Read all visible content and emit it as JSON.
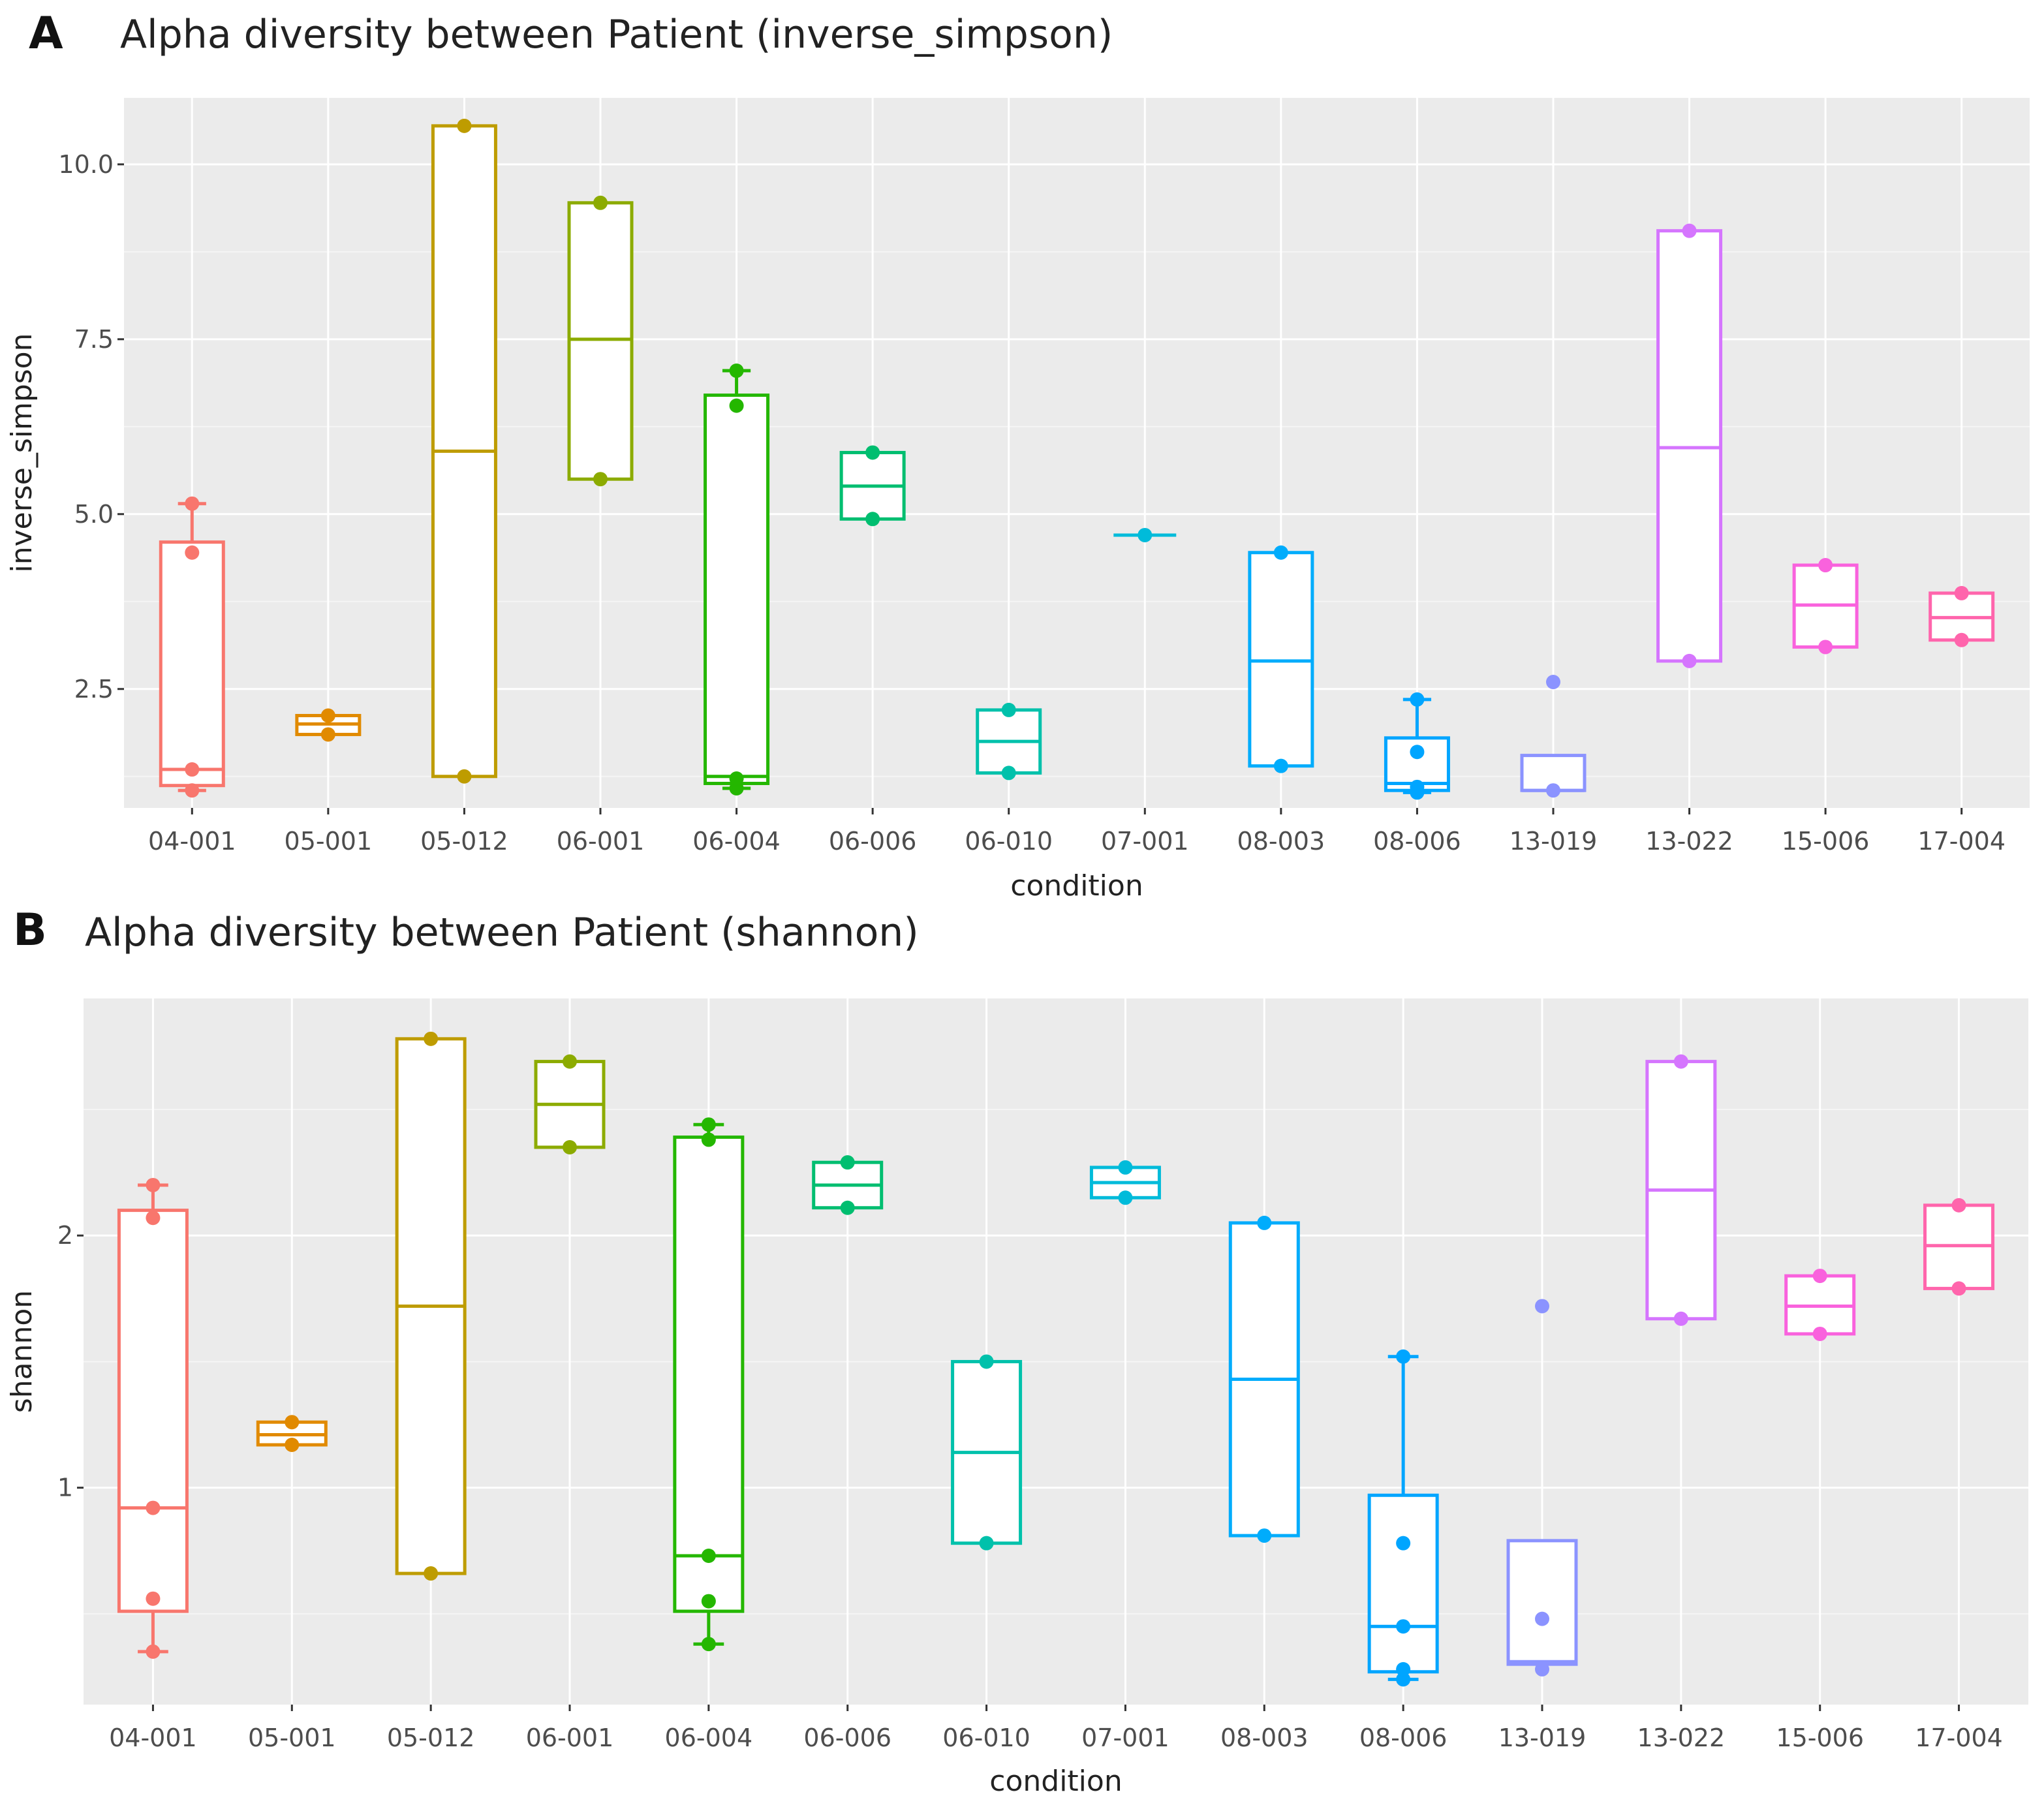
{
  "figure": {
    "panels": [
      {
        "letter": "A",
        "title": "Alpha diversity between Patient (inverse_simpson)"
      },
      {
        "letter": "B",
        "title": "Alpha diversity between Patient (shannon)"
      }
    ]
  },
  "chart_data": [
    {
      "type": "box",
      "title": "Alpha diversity between Patient (inverse_simpson)",
      "xlabel": "condition",
      "ylabel": "inverse_simpson",
      "ylim": [
        0.8,
        10.95
      ],
      "yticks": [
        2.5,
        5.0,
        7.5,
        10.0
      ],
      "ytick_labels": [
        "2.5",
        "5.0",
        "7.5",
        "10.0"
      ],
      "categories": [
        "04-001",
        "05-001",
        "05-012",
        "06-001",
        "06-004",
        "06-006",
        "06-010",
        "07-001",
        "08-003",
        "08-006",
        "13-019",
        "13-022",
        "15-006",
        "17-004"
      ],
      "colors": [
        "#F8766D",
        "#E18A00",
        "#BE9C00",
        "#8CAB00",
        "#24B700",
        "#00BE70",
        "#00C1AB",
        "#00BBDA",
        "#00ACFC",
        "#00A5FF",
        "#8B93FF",
        "#D575FE",
        "#F962DD",
        "#FF65AC"
      ],
      "boxes": [
        {
          "min": 1.05,
          "q1": 1.12,
          "median": 1.35,
          "q3": 4.6,
          "max": 5.15,
          "points": [
            1.05,
            1.35,
            4.45,
            5.15
          ]
        },
        {
          "min": 1.85,
          "q1": 1.85,
          "median": 2.0,
          "q3": 2.12,
          "max": 2.12,
          "points": [
            1.85,
            2.12
          ]
        },
        {
          "min": 1.25,
          "q1": 1.25,
          "median": 5.9,
          "q3": 10.55,
          "max": 10.55,
          "points": [
            1.25,
            10.55
          ]
        },
        {
          "min": 5.5,
          "q1": 5.5,
          "median": 7.5,
          "q3": 9.45,
          "max": 9.45,
          "points": [
            5.5,
            9.45
          ]
        },
        {
          "min": 1.08,
          "q1": 1.15,
          "median": 1.25,
          "q3": 6.7,
          "max": 7.05,
          "points": [
            1.08,
            1.22,
            6.55,
            7.05
          ]
        },
        {
          "min": 4.93,
          "q1": 4.93,
          "median": 5.4,
          "q3": 5.88,
          "max": 5.88,
          "points": [
            4.93,
            5.88
          ]
        },
        {
          "min": 1.3,
          "q1": 1.3,
          "median": 1.75,
          "q3": 2.2,
          "max": 2.2,
          "points": [
            1.3,
            2.2
          ]
        },
        {
          "min": 4.7,
          "q1": 4.7,
          "median": 4.7,
          "q3": 4.7,
          "max": 4.7,
          "points": [
            4.7
          ]
        },
        {
          "min": 1.4,
          "q1": 1.4,
          "median": 2.9,
          "q3": 4.45,
          "max": 4.45,
          "points": [
            1.4,
            4.45
          ]
        },
        {
          "min": 1.02,
          "q1": 1.05,
          "median": 1.15,
          "q3": 1.8,
          "max": 2.35,
          "points": [
            1.02,
            1.1,
            1.6,
            2.35
          ]
        },
        {
          "min": 1.05,
          "q1": 1.05,
          "median": 1.05,
          "q3": 1.55,
          "max": 1.55,
          "points": [
            1.05,
            2.6
          ]
        },
        {
          "min": 2.9,
          "q1": 2.9,
          "median": 5.95,
          "q3": 9.05,
          "max": 9.05,
          "points": [
            2.9,
            9.05
          ]
        },
        {
          "min": 3.1,
          "q1": 3.1,
          "median": 3.7,
          "q3": 4.27,
          "max": 4.27,
          "points": [
            3.1,
            4.27
          ]
        },
        {
          "min": 3.2,
          "q1": 3.2,
          "median": 3.52,
          "q3": 3.87,
          "max": 3.87,
          "points": [
            3.2,
            3.87
          ]
        }
      ]
    },
    {
      "type": "box",
      "title": "Alpha diversity between Patient (shannon)",
      "xlabel": "condition",
      "ylabel": "shannon",
      "ylim": [
        0.14,
        2.94
      ],
      "yticks": [
        1,
        2
      ],
      "ytick_labels": [
        "1",
        "2"
      ],
      "categories": [
        "04-001",
        "05-001",
        "05-012",
        "06-001",
        "06-004",
        "06-006",
        "06-010",
        "07-001",
        "08-003",
        "08-006",
        "13-019",
        "13-022",
        "15-006",
        "17-004"
      ],
      "colors": [
        "#F8766D",
        "#E18A00",
        "#BE9C00",
        "#8CAB00",
        "#24B700",
        "#00BE70",
        "#00C1AB",
        "#00BBDA",
        "#00ACFC",
        "#00A5FF",
        "#8B93FF",
        "#D575FE",
        "#F962DD",
        "#FF65AC"
      ],
      "boxes": [
        {
          "min": 0.35,
          "q1": 0.51,
          "median": 0.92,
          "q3": 2.1,
          "max": 2.2,
          "points": [
            0.35,
            0.56,
            0.92,
            2.07,
            2.2
          ]
        },
        {
          "min": 1.17,
          "q1": 1.17,
          "median": 1.21,
          "q3": 1.26,
          "max": 1.26,
          "points": [
            1.17,
            1.26
          ]
        },
        {
          "min": 0.66,
          "q1": 0.66,
          "median": 1.72,
          "q3": 2.78,
          "max": 2.78,
          "points": [
            0.66,
            2.78
          ]
        },
        {
          "min": 2.35,
          "q1": 2.35,
          "median": 2.52,
          "q3": 2.69,
          "max": 2.69,
          "points": [
            2.35,
            2.69
          ]
        },
        {
          "min": 0.38,
          "q1": 0.51,
          "median": 0.73,
          "q3": 2.39,
          "max": 2.44,
          "points": [
            0.38,
            0.55,
            0.73,
            2.38,
            2.44
          ]
        },
        {
          "min": 2.11,
          "q1": 2.11,
          "median": 2.2,
          "q3": 2.29,
          "max": 2.29,
          "points": [
            2.11,
            2.29
          ]
        },
        {
          "min": 0.78,
          "q1": 0.78,
          "median": 1.14,
          "q3": 1.5,
          "max": 1.5,
          "points": [
            0.78,
            1.5
          ]
        },
        {
          "min": 2.15,
          "q1": 2.15,
          "median": 2.21,
          "q3": 2.27,
          "max": 2.27,
          "points": [
            2.15,
            2.27
          ]
        },
        {
          "min": 0.81,
          "q1": 0.81,
          "median": 1.43,
          "q3": 2.05,
          "max": 2.05,
          "points": [
            0.81,
            2.05
          ]
        },
        {
          "min": 0.24,
          "q1": 0.27,
          "median": 0.45,
          "q3": 0.97,
          "max": 1.52,
          "points": [
            0.24,
            0.28,
            0.45,
            0.78,
            1.52
          ]
        },
        {
          "min": 0.3,
          "q1": 0.3,
          "median": 0.31,
          "q3": 0.79,
          "max": 0.79,
          "points": [
            0.28,
            0.48,
            1.72
          ]
        },
        {
          "min": 1.67,
          "q1": 1.67,
          "median": 2.18,
          "q3": 2.69,
          "max": 2.69,
          "points": [
            1.67,
            2.69
          ]
        },
        {
          "min": 1.61,
          "q1": 1.61,
          "median": 1.72,
          "q3": 1.84,
          "max": 1.84,
          "points": [
            1.61,
            1.84
          ]
        },
        {
          "min": 1.79,
          "q1": 1.79,
          "median": 1.96,
          "q3": 2.12,
          "max": 2.12,
          "points": [
            1.79,
            2.12
          ]
        }
      ]
    }
  ]
}
